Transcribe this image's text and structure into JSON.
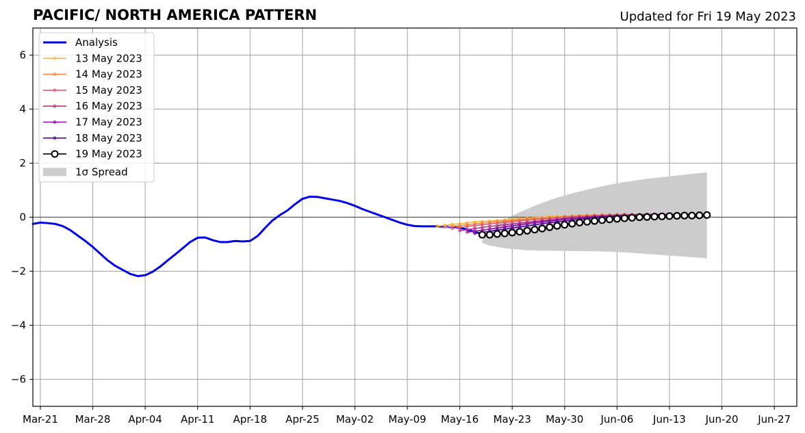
{
  "chart_data": {
    "type": "line",
    "title": "PACIFIC/ NORTH AMERICA PATTERN",
    "subtitle": "Updated for Fri 19 May 2023",
    "xlabel": "",
    "ylabel": "",
    "ylim": [
      -7,
      7
    ],
    "xlim": [
      "2023-03-20",
      "2023-06-30"
    ],
    "grid": true,
    "legend_position": "upper-left",
    "x_ticks": [
      "2023-03-21",
      "2023-03-28",
      "2023-04-04",
      "2023-04-11",
      "2023-04-18",
      "2023-04-25",
      "2023-05-02",
      "2023-05-09",
      "2023-05-16",
      "2023-05-23",
      "2023-05-30",
      "2023-06-06",
      "2023-06-13",
      "2023-06-20",
      "2023-06-27"
    ],
    "x_tick_labels": [
      "Mar-21",
      "Mar-28",
      "Apr-04",
      "Apr-11",
      "Apr-18",
      "Apr-25",
      "May-02",
      "May-09",
      "May-16",
      "May-23",
      "May-30",
      "Jun-06",
      "Jun-13",
      "Jun-20",
      "Jun-27"
    ],
    "y_ticks": [
      -6,
      -4,
      -2,
      0,
      2,
      4,
      6
    ],
    "y_tick_labels": [
      "−6",
      "−4",
      "−2",
      "0",
      "2",
      "4",
      "6"
    ],
    "legend": [
      "Analysis",
      "13 May 2023",
      "14 May 2023",
      "15 May 2023",
      "16 May 2023",
      "17 May 2023",
      "18 May 2023",
      "19 May 2023",
      "1σ Spread"
    ],
    "series": [
      {
        "name": "Analysis",
        "color": "#0000ee",
        "x": [
          "2023-03-20",
          "2023-03-21",
          "2023-03-22",
          "2023-03-23",
          "2023-03-24",
          "2023-03-25",
          "2023-03-26",
          "2023-03-27",
          "2023-03-28",
          "2023-03-29",
          "2023-03-30",
          "2023-03-31",
          "2023-04-01",
          "2023-04-02",
          "2023-04-03",
          "2023-04-04",
          "2023-04-05",
          "2023-04-06",
          "2023-04-07",
          "2023-04-08",
          "2023-04-09",
          "2023-04-10",
          "2023-04-11",
          "2023-04-12",
          "2023-04-13",
          "2023-04-14",
          "2023-04-15",
          "2023-04-16",
          "2023-04-17",
          "2023-04-18",
          "2023-04-19",
          "2023-04-20",
          "2023-04-21",
          "2023-04-22",
          "2023-04-23",
          "2023-04-24",
          "2023-04-25",
          "2023-04-26",
          "2023-04-27",
          "2023-04-28",
          "2023-04-29",
          "2023-04-30",
          "2023-05-01",
          "2023-05-02",
          "2023-05-03",
          "2023-05-04",
          "2023-05-05",
          "2023-05-06",
          "2023-05-07",
          "2023-05-08",
          "2023-05-09",
          "2023-05-10",
          "2023-05-11",
          "2023-05-12",
          "2023-05-13",
          "2023-05-14",
          "2023-05-15",
          "2023-05-16",
          "2023-05-17",
          "2023-05-18",
          "2023-05-19"
        ],
        "values": [
          -0.25,
          -0.2,
          -0.22,
          -0.25,
          -0.33,
          -0.48,
          -0.68,
          -0.88,
          -1.1,
          -1.35,
          -1.6,
          -1.8,
          -1.95,
          -2.1,
          -2.18,
          -2.15,
          -2.02,
          -1.83,
          -1.6,
          -1.38,
          -1.15,
          -0.92,
          -0.76,
          -0.75,
          -0.85,
          -0.92,
          -0.92,
          -0.88,
          -0.9,
          -0.88,
          -0.7,
          -0.4,
          -0.12,
          0.08,
          0.25,
          0.48,
          0.68,
          0.76,
          0.75,
          0.7,
          0.65,
          0.6,
          0.52,
          0.42,
          0.3,
          0.2,
          0.1,
          0.0,
          -0.1,
          -0.2,
          -0.28,
          -0.33,
          -0.34,
          -0.34,
          -0.34,
          -0.35,
          -0.37,
          -0.4,
          -0.45,
          -0.55,
          -0.62
        ]
      },
      {
        "name": "13 May 2023",
        "color": "#fdb42f",
        "start": "2023-05-13",
        "values": [
          -0.33,
          -0.3,
          -0.27,
          -0.24,
          -0.21,
          -0.18,
          -0.16,
          -0.14,
          -0.12,
          -0.1,
          -0.08,
          -0.06,
          -0.04,
          -0.02,
          0.0,
          0.02,
          0.03,
          0.04,
          0.05,
          0.06,
          0.07,
          0.08,
          0.09,
          0.09,
          0.1,
          0.1,
          0.1,
          0.1,
          0.1,
          0.1,
          0.1
        ]
      },
      {
        "name": "14 May 2023",
        "color": "#f48849",
        "start": "2023-05-14",
        "values": [
          -0.37,
          -0.34,
          -0.31,
          -0.28,
          -0.25,
          -0.22,
          -0.19,
          -0.16,
          -0.14,
          -0.12,
          -0.1,
          -0.08,
          -0.06,
          -0.04,
          -0.02,
          0.0,
          0.02,
          0.03,
          0.04,
          0.05,
          0.06,
          0.07,
          0.08,
          0.09,
          0.09,
          0.1,
          0.1,
          0.1,
          0.1,
          0.1,
          0.1
        ]
      },
      {
        "name": "15 May 2023",
        "color": "#db5c68",
        "start": "2023-05-15",
        "values": [
          -0.42,
          -0.38,
          -0.34,
          -0.31,
          -0.28,
          -0.25,
          -0.22,
          -0.19,
          -0.16,
          -0.13,
          -0.1,
          -0.08,
          -0.06,
          -0.04,
          -0.02,
          0.0,
          0.02,
          0.04,
          0.05,
          0.06,
          0.07,
          0.08,
          0.09,
          0.1,
          0.1,
          0.1,
          0.1,
          0.1,
          0.1,
          0.1,
          0.1
        ]
      },
      {
        "name": "16 May 2023",
        "color": "#b83289",
        "start": "2023-05-16",
        "values": [
          -0.5,
          -0.46,
          -0.42,
          -0.38,
          -0.34,
          -0.31,
          -0.28,
          -0.25,
          -0.22,
          -0.19,
          -0.16,
          -0.13,
          -0.1,
          -0.07,
          -0.05,
          -0.03,
          -0.01,
          0.01,
          0.03,
          0.04,
          0.05,
          0.06,
          0.07,
          0.08,
          0.09,
          0.1,
          0.1,
          0.1,
          0.1,
          0.1,
          0.1
        ]
      },
      {
        "name": "17 May 2023",
        "color": "#8b0aa5",
        "start": "2023-05-17",
        "values": [
          -0.55,
          -0.52,
          -0.48,
          -0.44,
          -0.4,
          -0.36,
          -0.32,
          -0.28,
          -0.24,
          -0.2,
          -0.17,
          -0.14,
          -0.11,
          -0.08,
          -0.05,
          -0.03,
          -0.01,
          0.01,
          0.03,
          0.04,
          0.05,
          0.06,
          0.07,
          0.08,
          0.09,
          0.1,
          0.1,
          0.1,
          0.1,
          0.1,
          0.1
        ]
      },
      {
        "name": "18 May 2023",
        "color": "#5402a3",
        "start": "2023-05-18",
        "values": [
          -0.6,
          -0.56,
          -0.52,
          -0.48,
          -0.44,
          -0.4,
          -0.36,
          -0.32,
          -0.28,
          -0.24,
          -0.2,
          -0.17,
          -0.14,
          -0.11,
          -0.08,
          -0.05,
          -0.03,
          -0.01,
          0.01,
          0.03,
          0.04,
          0.05,
          0.06,
          0.07,
          0.08,
          0.09,
          0.1,
          0.1,
          0.1,
          0.1,
          0.1
        ]
      },
      {
        "name": "19 May 2023",
        "color": "#000000",
        "start": "2023-05-19",
        "values": [
          -0.65,
          -0.65,
          -0.62,
          -0.6,
          -0.57,
          -0.54,
          -0.5,
          -0.46,
          -0.42,
          -0.37,
          -0.32,
          -0.28,
          -0.24,
          -0.2,
          -0.17,
          -0.14,
          -0.11,
          -0.08,
          -0.06,
          -0.04,
          -0.02,
          0.0,
          0.01,
          0.02,
          0.03,
          0.04,
          0.05,
          0.06,
          0.06,
          0.07,
          0.08
        ]
      }
    ],
    "spread": {
      "name": "1σ Spread",
      "color": "#cccccc",
      "start": "2023-05-19",
      "upper": [
        -0.85,
        -0.55,
        -0.3,
        -0.1,
        0.05,
        0.18,
        0.3,
        0.42,
        0.53,
        0.63,
        0.72,
        0.8,
        0.88,
        0.95,
        1.02,
        1.08,
        1.14,
        1.2,
        1.25,
        1.3,
        1.34,
        1.38,
        1.42,
        1.45,
        1.48,
        1.51,
        1.54,
        1.57,
        1.6,
        1.63,
        1.66
      ],
      "lower": [
        -0.95,
        -1.05,
        -1.1,
        -1.15,
        -1.18,
        -1.2,
        -1.22,
        -1.23,
        -1.24,
        -1.24,
        -1.25,
        -1.25,
        -1.25,
        -1.25,
        -1.26,
        -1.26,
        -1.27,
        -1.28,
        -1.29,
        -1.3,
        -1.32,
        -1.34,
        -1.36,
        -1.38,
        -1.4,
        -1.42,
        -1.44,
        -1.46,
        -1.48,
        -1.5,
        -1.53
      ]
    }
  }
}
